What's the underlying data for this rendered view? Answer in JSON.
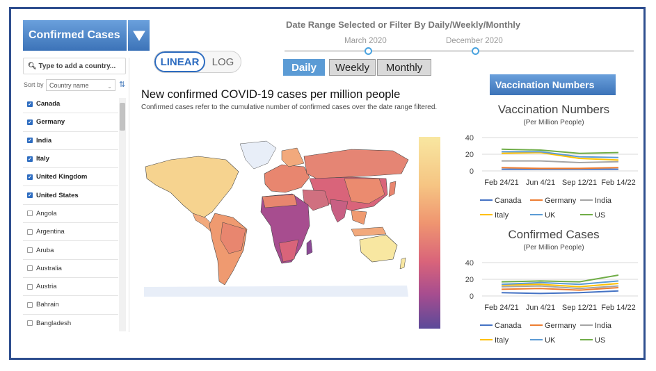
{
  "metric_selector": {
    "label": "Confirmed Cases"
  },
  "country_panel": {
    "search_placeholder": "Type to add a country...",
    "sort_label": "Sort by",
    "sort_value": "Country name",
    "countries": [
      {
        "name": "Canada",
        "checked": true
      },
      {
        "name": "Germany",
        "checked": true
      },
      {
        "name": "India",
        "checked": true
      },
      {
        "name": "Italy",
        "checked": true
      },
      {
        "name": "United Kingdom",
        "checked": true
      },
      {
        "name": "United States",
        "checked": true
      },
      {
        "name": "Angola",
        "checked": false
      },
      {
        "name": "Argentina",
        "checked": false
      },
      {
        "name": "Aruba",
        "checked": false
      },
      {
        "name": "Australia",
        "checked": false
      },
      {
        "name": "Austria",
        "checked": false
      },
      {
        "name": "Bahrain",
        "checked": false
      },
      {
        "name": "Bangladesh",
        "checked": false
      }
    ]
  },
  "scale_toggle": {
    "linear": "LINEAR",
    "log": "LOG",
    "active": "LINEAR"
  },
  "date_range": {
    "title": "Date Range Selected or Filter By Daily/Weekly/Monthly",
    "start": "March 2020",
    "end": "December 2020",
    "periods": [
      "Daily",
      "Weekly",
      "Monthly"
    ],
    "active_period": "Daily"
  },
  "map": {
    "title": "New confirmed COVID-19 cases per million people",
    "subtitle": "Confirmed cases refer to the cumulative number of confirmed cases over the date range filtered."
  },
  "vaccination_button": {
    "label": "Vaccination Numbers"
  },
  "colors": {
    "Canada": "#4472c4",
    "Germany": "#ed7d31",
    "India": "#a5a5a5",
    "Italy": "#ffc000",
    "UK": "#5b9bd5",
    "US": "#70ad47"
  },
  "chart_data": [
    {
      "type": "line",
      "title": "Vaccination Numbers",
      "subtitle": "(Per Million People)",
      "categories": [
        "Feb 24/21",
        "Jun 4/21",
        "Sep 12/21",
        "Feb 14/22"
      ],
      "ylim": [
        0,
        40
      ],
      "yticks": [
        0,
        20,
        40
      ],
      "legend_position": "bottom",
      "series": [
        {
          "name": "Canada",
          "values": [
            2,
            2,
            2,
            2
          ]
        },
        {
          "name": "Germany",
          "values": [
            4,
            3,
            3,
            4
          ]
        },
        {
          "name": "India",
          "values": [
            12,
            12,
            10,
            11
          ]
        },
        {
          "name": "Italy",
          "values": [
            21,
            22,
            15,
            13
          ]
        },
        {
          "name": "UK",
          "values": [
            23,
            23,
            17,
            16
          ]
        },
        {
          "name": "US",
          "values": [
            26,
            25,
            21,
            22
          ]
        }
      ]
    },
    {
      "type": "line",
      "title": "Confirmed Cases",
      "subtitle": "(Per Million People)",
      "categories": [
        "Feb 24/21",
        "Jun 4/21",
        "Sep 12/21",
        "Feb 14/22"
      ],
      "ylim": [
        0,
        40
      ],
      "yticks": [
        0,
        20,
        40
      ],
      "legend_position": "bottom",
      "series": [
        {
          "name": "Canada",
          "values": [
            4,
            3,
            4,
            6
          ]
        },
        {
          "name": "Germany",
          "values": [
            8,
            9,
            7,
            10
          ]
        },
        {
          "name": "India",
          "values": [
            11,
            12,
            9,
            12
          ]
        },
        {
          "name": "Italy",
          "values": [
            13,
            14,
            11,
            15
          ]
        },
        {
          "name": "UK",
          "values": [
            14,
            16,
            14,
            18
          ]
        },
        {
          "name": "US",
          "values": [
            17,
            18,
            17,
            25
          ]
        }
      ]
    }
  ]
}
